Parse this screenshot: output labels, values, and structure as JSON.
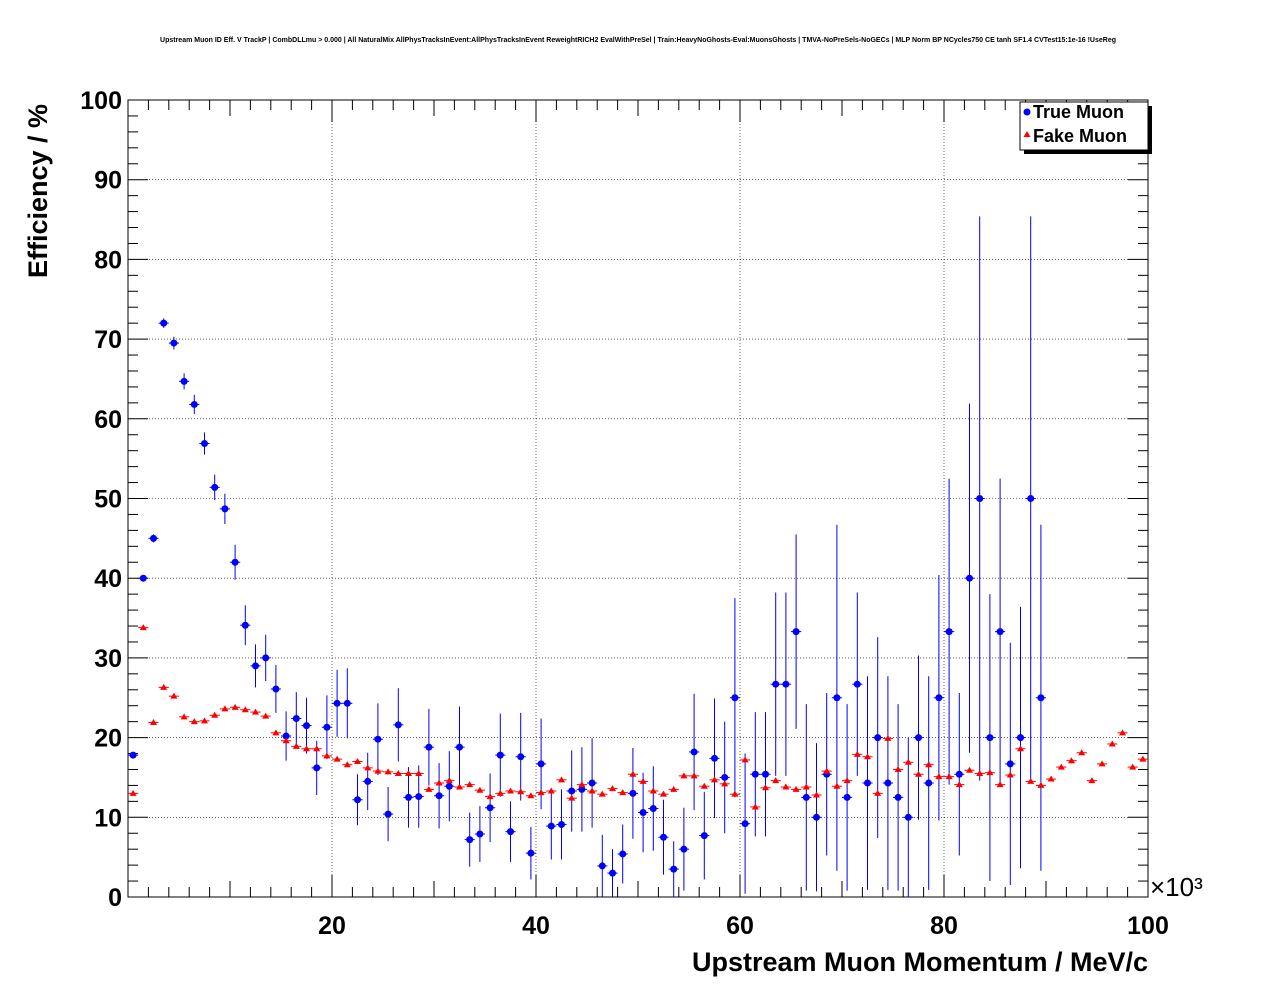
{
  "chart_data": {
    "type": "scatter",
    "title": "Upstream Muon ID Eff. V TrackP | CombDLLmu > 0.000 | All NaturalMix AllPhysTracksInEvent:AllPhysTracksInEvent ReweightRICH2 EvalWithPreSel | Train:HeavyNoGhosts-Eval:MuonsGhosts | TMVA-NoPreSels-NoGECs | MLP Norm BP NCycles750 CE tanh SF1.4 CVTest15:1e-16 !UseReg",
    "xlabel": "Upstream Muon Momentum / MeV/c",
    "ylabel": "Efficiency / %",
    "x_exponent": "×10³",
    "xlim": [
      0,
      100000
    ],
    "ylim": [
      0,
      100
    ],
    "x_ticks": [
      20,
      40,
      60,
      80,
      100
    ],
    "y_ticks": [
      0,
      10,
      20,
      30,
      40,
      50,
      60,
      70,
      80,
      90,
      100
    ],
    "grid": true,
    "legend_position": "top-right",
    "series": [
      {
        "name": "True Muon",
        "marker": "circle",
        "color": "#0000ff",
        "points": [
          [
            500,
            17.8,
            0.3
          ],
          [
            1500,
            40.0,
            0.4
          ],
          [
            2500,
            45.0,
            0.5
          ],
          [
            3500,
            72.0,
            0.6
          ],
          [
            4500,
            69.5,
            0.8
          ],
          [
            5500,
            64.7,
            1.0
          ],
          [
            6500,
            61.8,
            1.2
          ],
          [
            7500,
            56.9,
            1.4
          ],
          [
            8500,
            51.4,
            1.6
          ],
          [
            9500,
            48.7,
            1.9
          ],
          [
            10500,
            42.0,
            2.2
          ],
          [
            11500,
            34.1,
            2.5
          ],
          [
            12500,
            29.0,
            2.7
          ],
          [
            13500,
            30.0,
            2.9
          ],
          [
            14500,
            26.1,
            3.0
          ],
          [
            15500,
            20.2,
            3.1
          ],
          [
            16500,
            22.4,
            3.3
          ],
          [
            17500,
            21.5,
            3.5
          ],
          [
            18500,
            16.2,
            3.4
          ],
          [
            19500,
            21.3,
            4.0
          ],
          [
            20500,
            24.3,
            4.2
          ],
          [
            21500,
            24.3,
            4.4
          ],
          [
            22500,
            12.2,
            3.2
          ],
          [
            23500,
            14.5,
            3.6
          ],
          [
            24500,
            19.8,
            4.5
          ],
          [
            25500,
            10.4,
            3.4
          ],
          [
            26500,
            21.6,
            4.6
          ],
          [
            27500,
            12.5,
            3.8
          ],
          [
            28500,
            12.6,
            3.9
          ],
          [
            29500,
            18.8,
            4.8
          ],
          [
            30500,
            12.7,
            4.1
          ],
          [
            31500,
            13.9,
            4.4
          ],
          [
            32500,
            18.8,
            5.1
          ],
          [
            33500,
            7.2,
            3.4
          ],
          [
            34500,
            7.9,
            3.5
          ],
          [
            35500,
            11.2,
            4.3
          ],
          [
            36500,
            17.8,
            5.2
          ],
          [
            37500,
            8.2,
            3.8
          ],
          [
            38500,
            17.6,
            5.5
          ],
          [
            39500,
            5.5,
            3.3
          ],
          [
            40500,
            16.7,
            5.7
          ],
          [
            41500,
            8.9,
            4.2
          ],
          [
            42500,
            9.1,
            4.4
          ],
          [
            43500,
            13.3,
            5.1
          ],
          [
            44500,
            13.5,
            5.3
          ],
          [
            45500,
            14.3,
            5.6
          ],
          [
            46500,
            3.9,
            3.9
          ],
          [
            47500,
            3.0,
            3.0
          ],
          [
            48500,
            5.4,
            3.7
          ],
          [
            49500,
            13.0,
            5.7
          ],
          [
            50500,
            10.6,
            5.0
          ],
          [
            51500,
            11.1,
            5.3
          ],
          [
            52500,
            7.5,
            4.7
          ],
          [
            53500,
            3.5,
            3.5
          ],
          [
            54500,
            6.0,
            5.2
          ],
          [
            55500,
            18.2,
            7.3
          ],
          [
            56500,
            7.7,
            5.5
          ],
          [
            57500,
            17.4,
            7.5
          ],
          [
            58500,
            15.0,
            7.0
          ],
          [
            59500,
            25.0,
            12.5
          ],
          [
            60500,
            9.2,
            8.8
          ],
          [
            61500,
            15.4,
            7.8
          ],
          [
            62500,
            15.4,
            7.8
          ],
          [
            63500,
            26.7,
            11.5
          ],
          [
            64500,
            26.7,
            11.5
          ],
          [
            65500,
            33.3,
            12.2
          ],
          [
            66500,
            12.5,
            11.7
          ],
          [
            67500,
            10.0,
            9.3
          ],
          [
            68500,
            15.4,
            10.2
          ],
          [
            69500,
            25.0,
            21.7
          ],
          [
            70500,
            12.5,
            11.7
          ],
          [
            71500,
            26.7,
            11.5
          ],
          [
            72500,
            14.3,
            13.4
          ],
          [
            73500,
            20.0,
            12.6
          ],
          [
            74500,
            14.3,
            13.4
          ],
          [
            75500,
            12.5,
            11.7
          ],
          [
            76500,
            10.0,
            10.0
          ],
          [
            77500,
            20.0,
            10.3
          ],
          [
            78500,
            14.3,
            13.4
          ],
          [
            79500,
            25.0,
            15.4
          ],
          [
            80500,
            33.3,
            19.2
          ],
          [
            81500,
            15.4,
            10.2
          ],
          [
            82500,
            40.0,
            21.9
          ],
          [
            83500,
            50.0,
            35.4
          ],
          [
            84500,
            20.0,
            18.0
          ],
          [
            85500,
            33.3,
            19.2
          ],
          [
            86500,
            16.7,
            15.2
          ],
          [
            87500,
            20.0,
            16.4
          ],
          [
            88500,
            50.0,
            35.4
          ],
          [
            89500,
            25.0,
            21.7
          ]
        ]
      },
      {
        "name": "Fake Muon",
        "marker": "triangle",
        "color": "#ff0000",
        "points": [
          [
            500,
            13.0
          ],
          [
            1500,
            33.8
          ],
          [
            2500,
            21.9
          ],
          [
            3500,
            26.3
          ],
          [
            4500,
            25.2
          ],
          [
            5500,
            22.6
          ],
          [
            6500,
            22.0
          ],
          [
            7500,
            22.1
          ],
          [
            8500,
            22.8
          ],
          [
            9500,
            23.6
          ],
          [
            10500,
            23.8
          ],
          [
            11500,
            23.5
          ],
          [
            12500,
            23.2
          ],
          [
            13500,
            22.7
          ],
          [
            14500,
            20.6
          ],
          [
            15500,
            19.6
          ],
          [
            16500,
            18.9
          ],
          [
            17500,
            18.6
          ],
          [
            18500,
            18.6
          ],
          [
            19500,
            17.7
          ],
          [
            20500,
            17.3
          ],
          [
            21500,
            16.6
          ],
          [
            22500,
            17.0
          ],
          [
            23500,
            16.2
          ],
          [
            24500,
            15.8
          ],
          [
            25500,
            15.7
          ],
          [
            26500,
            15.5
          ],
          [
            27500,
            15.5
          ],
          [
            28500,
            15.5
          ],
          [
            29500,
            13.5
          ],
          [
            30500,
            14.3
          ],
          [
            31500,
            14.6
          ],
          [
            32500,
            13.8
          ],
          [
            33500,
            14.1
          ],
          [
            34500,
            13.4
          ],
          [
            35500,
            12.6
          ],
          [
            36500,
            13.0
          ],
          [
            37500,
            13.3
          ],
          [
            38500,
            13.2
          ],
          [
            39500,
            12.7
          ],
          [
            40500,
            13.1
          ],
          [
            41500,
            13.3
          ],
          [
            42500,
            14.7
          ],
          [
            43500,
            12.4
          ],
          [
            44500,
            14.1
          ],
          [
            45500,
            13.3
          ],
          [
            46500,
            12.9
          ],
          [
            47500,
            13.6
          ],
          [
            48500,
            13.1
          ],
          [
            49500,
            15.4
          ],
          [
            50500,
            14.5
          ],
          [
            51500,
            13.3
          ],
          [
            52500,
            12.9
          ],
          [
            53500,
            13.5
          ],
          [
            54500,
            15.2
          ],
          [
            55500,
            15.2
          ],
          [
            56500,
            13.9
          ],
          [
            57500,
            14.7
          ],
          [
            58500,
            14.2
          ],
          [
            59500,
            12.9
          ],
          [
            60500,
            17.2
          ],
          [
            61500,
            11.3
          ],
          [
            62500,
            13.7
          ],
          [
            63500,
            14.6
          ],
          [
            64500,
            13.8
          ],
          [
            65500,
            13.5
          ],
          [
            66500,
            13.8
          ],
          [
            67500,
            12.8
          ],
          [
            68500,
            15.8
          ],
          [
            69500,
            13.9
          ],
          [
            70500,
            14.6
          ],
          [
            71500,
            17.9
          ],
          [
            72500,
            17.6
          ],
          [
            73500,
            13.0
          ],
          [
            74500,
            19.9
          ],
          [
            75500,
            16.0
          ],
          [
            76500,
            16.9
          ],
          [
            77500,
            15.4
          ],
          [
            78500,
            16.6
          ],
          [
            79500,
            15.1
          ],
          [
            80500,
            15.1
          ],
          [
            81500,
            14.1
          ],
          [
            82500,
            15.9
          ],
          [
            83500,
            15.5
          ],
          [
            84500,
            15.6
          ],
          [
            85500,
            14.1
          ],
          [
            86500,
            15.3
          ],
          [
            87500,
            18.6
          ],
          [
            88500,
            14.5
          ],
          [
            89500,
            14.0
          ],
          [
            90500,
            14.8
          ],
          [
            91500,
            16.3
          ],
          [
            92500,
            17.1
          ],
          [
            93500,
            18.1
          ],
          [
            94500,
            14.6
          ],
          [
            95500,
            16.7
          ],
          [
            96500,
            19.2
          ],
          [
            97500,
            20.6
          ],
          [
            98500,
            16.3
          ],
          [
            99500,
            17.3
          ]
        ]
      }
    ]
  }
}
